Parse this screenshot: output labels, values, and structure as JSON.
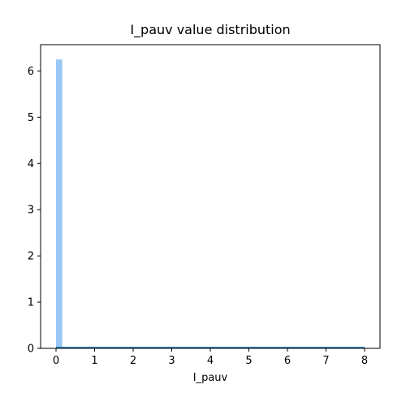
{
  "chart_data": {
    "type": "bar",
    "title": "I_pauv value distribution",
    "xlabel": "I_pauv",
    "ylabel": "",
    "xlim": [
      -0.4,
      8.4
    ],
    "ylim": [
      0,
      6.57
    ],
    "xticks": [
      0,
      1,
      2,
      3,
      4,
      5,
      6,
      7,
      8
    ],
    "yticks": [
      0,
      1,
      2,
      3,
      4,
      5,
      6
    ],
    "bin_width": 0.16,
    "bins": [
      {
        "x0": 0.0,
        "x1": 0.16,
        "value": 6.25
      }
    ],
    "kde_line": {
      "x": [
        0.0,
        8.0
      ],
      "y": [
        0.02,
        0.02
      ]
    },
    "grid": false,
    "legend": "none"
  },
  "colors": {
    "bar": "#99c8f5",
    "line": "#1f77b4",
    "axis": "#000000"
  }
}
